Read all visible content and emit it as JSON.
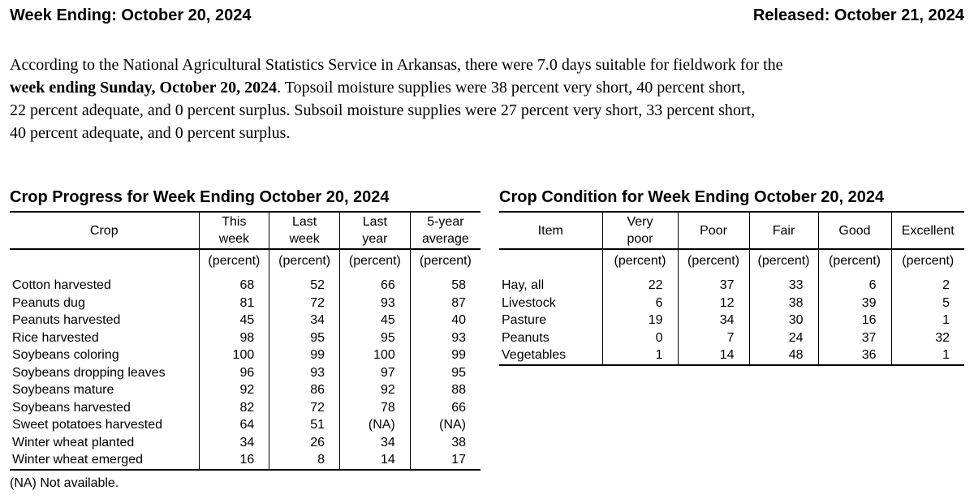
{
  "header": {
    "week_ending": "Week Ending: October 20, 2024",
    "released": "Released: October 21, 2024"
  },
  "paragraph": {
    "lines": [
      [
        {
          "t": "According to the National Agricultural Statistics Service in Arkansas, there were 7.0 days suitable for fieldwork for the",
          "b": false
        }
      ],
      [
        {
          "t": "week ending Sunday, October 20, 2024",
          "b": true
        },
        {
          "t": ". Topsoil moisture supplies were 38 percent very short, 40 percent short,",
          "b": false
        }
      ],
      [
        {
          "t": "22 percent adequate, and 0 percent surplus. Subsoil moisture supplies were 27 percent very short, 33 percent short,",
          "b": false
        }
      ],
      [
        {
          "t": "40 percent adequate, and 0 percent surplus.",
          "b": false
        }
      ]
    ]
  },
  "crop_progress": {
    "title": "Crop Progress for Week Ending October 20, 2024",
    "columns": [
      "Crop",
      "This\nweek",
      "Last\nweek",
      "Last\nyear",
      "5-year\naverage"
    ],
    "units": [
      "",
      "(percent)",
      "(percent)",
      "(percent)",
      "(percent)"
    ],
    "rows": [
      [
        "Cotton harvested",
        68,
        52,
        66,
        58
      ],
      [
        "Peanuts dug",
        81,
        72,
        93,
        87
      ],
      [
        "Peanuts harvested",
        45,
        34,
        45,
        40
      ],
      [
        "Rice harvested",
        98,
        95,
        95,
        93
      ],
      [
        "Soybeans coloring",
        100,
        99,
        100,
        99
      ],
      [
        "Soybeans dropping leaves",
        96,
        93,
        97,
        95
      ],
      [
        "Soybeans mature",
        92,
        86,
        92,
        88
      ],
      [
        "Soybeans harvested",
        82,
        72,
        78,
        66
      ],
      [
        "Sweet potatoes harvested",
        64,
        51,
        "(NA)",
        "(NA)"
      ],
      [
        "Winter wheat planted",
        34,
        26,
        34,
        38
      ],
      [
        "Winter wheat emerged",
        16,
        8,
        14,
        17
      ]
    ],
    "footnote": "(NA) Not available."
  },
  "crop_condition": {
    "title": "Crop Condition for Week Ending October 20, 2024",
    "columns": [
      "Item",
      "Very\npoor",
      "Poor",
      "Fair",
      "Good",
      "Excellent"
    ],
    "units": [
      "",
      "(percent)",
      "(percent)",
      "(percent)",
      "(percent)",
      "(percent)"
    ],
    "rows": [
      [
        "Hay, all",
        22,
        37,
        33,
        6,
        2
      ],
      [
        "Livestock",
        6,
        12,
        38,
        39,
        5
      ],
      [
        "Pasture",
        19,
        34,
        30,
        16,
        1
      ],
      [
        "Peanuts",
        0,
        7,
        24,
        37,
        32
      ],
      [
        "Vegetables",
        1,
        14,
        48,
        36,
        1
      ]
    ]
  }
}
